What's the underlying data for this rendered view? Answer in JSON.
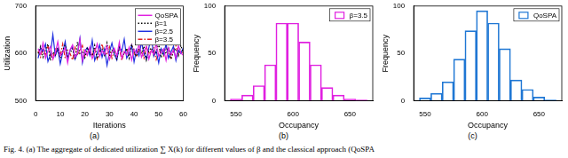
{
  "caption": "Fig. 4. (a) The aggregate of dedicated utilization ∑ X(k) for different values of β and the classical approach (QoSPA",
  "chart_data": [
    {
      "type": "line",
      "panel": "(a)",
      "x_label": "Iterations",
      "y_label": "Utilization",
      "x": [
        1,
        2,
        3,
        4,
        5,
        6,
        7,
        8,
        9,
        10,
        11,
        12,
        13,
        14,
        15,
        16,
        17,
        18,
        19,
        20,
        21,
        22,
        23,
        24,
        25,
        26,
        27,
        28,
        29,
        30,
        31,
        32,
        33,
        34,
        35,
        36,
        37,
        38,
        39,
        40,
        41,
        42,
        43,
        44,
        45,
        46,
        47,
        48,
        49,
        50,
        51,
        52,
        53,
        54,
        55,
        56,
        57,
        58,
        59,
        60
      ],
      "xlim": [
        0,
        60
      ],
      "xticks": [
        0,
        10,
        20,
        30,
        40,
        50,
        60
      ],
      "ylim": [
        500,
        700
      ],
      "yticks": [
        500,
        600,
        700
      ],
      "grid": false,
      "legend": "upper right",
      "series": [
        {
          "name": "QoSPA",
          "color": "#e020e0",
          "line_style": "solid",
          "values": [
            610,
            598,
            622,
            590,
            605,
            615,
            588,
            600,
            625,
            595,
            603,
            612,
            580,
            608,
            618,
            592,
            600,
            630,
            585,
            607,
            596,
            614,
            589,
            601,
            620,
            593,
            606,
            598,
            616,
            587,
            602,
            611,
            594,
            624,
            590,
            605,
            597,
            613,
            586,
            609,
            600,
            619,
            592,
            604,
            615,
            588,
            606,
            598,
            621,
            594,
            603,
            610,
            585,
            612,
            597,
            607,
            590,
            616,
            601,
            596
          ]
        },
        {
          "name": "β=1",
          "color": "#000000",
          "line_style": "dotted",
          "values": [
            600,
            615,
            592,
            608,
            620,
            585,
            603,
            597,
            612,
            590,
            606,
            618,
            594,
            601,
            610,
            587,
            624,
            598,
            605,
            591,
            613,
            600,
            595,
            617,
            589,
            604,
            609,
            596,
            622,
            593,
            607,
            600,
            588,
            614,
            602,
            597,
            611,
            590,
            619,
            603,
            594,
            608,
            600,
            615,
            586,
            605,
            612,
            597,
            602,
            621,
            591,
            606,
            599,
            613,
            588,
            604,
            610,
            595,
            617,
            600
          ]
        },
        {
          "name": "β=2.5",
          "color": "#1f2fe0",
          "line_style": "solid",
          "values": [
            590,
            612,
            605,
            620,
            583,
            598,
            640,
            595,
            610,
            578,
            602,
            625,
            590,
            607,
            615,
            588,
            600,
            632,
            580,
            605,
            612,
            596,
            628,
            585,
            600,
            618,
            592,
            610,
            575,
            603,
            622,
            598,
            586,
            614,
            605,
            630,
            590,
            600,
            617,
            582,
            608,
            595,
            624,
            600,
            588,
            612,
            636,
            594,
            605,
            580,
            610,
            598,
            620,
            590,
            603,
            615,
            585,
            607,
            600,
            612
          ]
        },
        {
          "name": "β=3.5",
          "color": "#e02020",
          "line_style": "dashdot",
          "values": [
            605,
            592,
            610,
            598,
            615,
            600,
            588,
            612,
            603,
            595,
            620,
            590,
            607,
            600,
            586,
            613,
            598,
            605,
            617,
            593,
            602,
            609,
            596,
            611,
            588,
            604,
            620,
            597,
            600,
            614,
            590,
            606,
            598,
            612,
            585,
            603,
            608,
            595,
            618,
            600,
            592,
            610,
            604,
            590,
            615,
            598,
            606,
            612,
            587,
            602,
            609,
            595,
            613,
            600,
            590,
            607,
            616,
            598,
            604,
            601
          ]
        }
      ]
    },
    {
      "type": "histogram",
      "panel": "(b)",
      "x_label": "Occupancy",
      "y_label": "Frequency",
      "bins": [
        545,
        555,
        565,
        575,
        585,
        595,
        605,
        615,
        625,
        635,
        645,
        655,
        665
      ],
      "xlim": [
        540,
        670
      ],
      "xticks": [
        550,
        600,
        650
      ],
      "ylim": [
        0,
        100
      ],
      "yticks": [
        0,
        50,
        100
      ],
      "grid": false,
      "legend": "upper right",
      "series": [
        {
          "name": "β=3.5",
          "color": "#e020e0",
          "values": [
            2,
            6,
            16,
            38,
            82,
            82,
            62,
            38,
            14,
            6,
            2,
            1
          ]
        }
      ]
    },
    {
      "type": "histogram",
      "panel": "(c)",
      "x_label": "Occupancy",
      "y_label": "Frequency",
      "bins": [
        545,
        555,
        565,
        575,
        585,
        595,
        605,
        615,
        625,
        635,
        645,
        655,
        665
      ],
      "xlim": [
        540,
        670
      ],
      "xticks": [
        550,
        600,
        650
      ],
      "ylim": [
        0,
        100
      ],
      "yticks": [
        0,
        50,
        100
      ],
      "grid": false,
      "legend": "upper right",
      "series": [
        {
          "name": "QoSPA",
          "color": "#1f77d4",
          "values": [
            3,
            8,
            20,
            44,
            74,
            95,
            82,
            55,
            22,
            12,
            4,
            1
          ]
        }
      ]
    }
  ]
}
